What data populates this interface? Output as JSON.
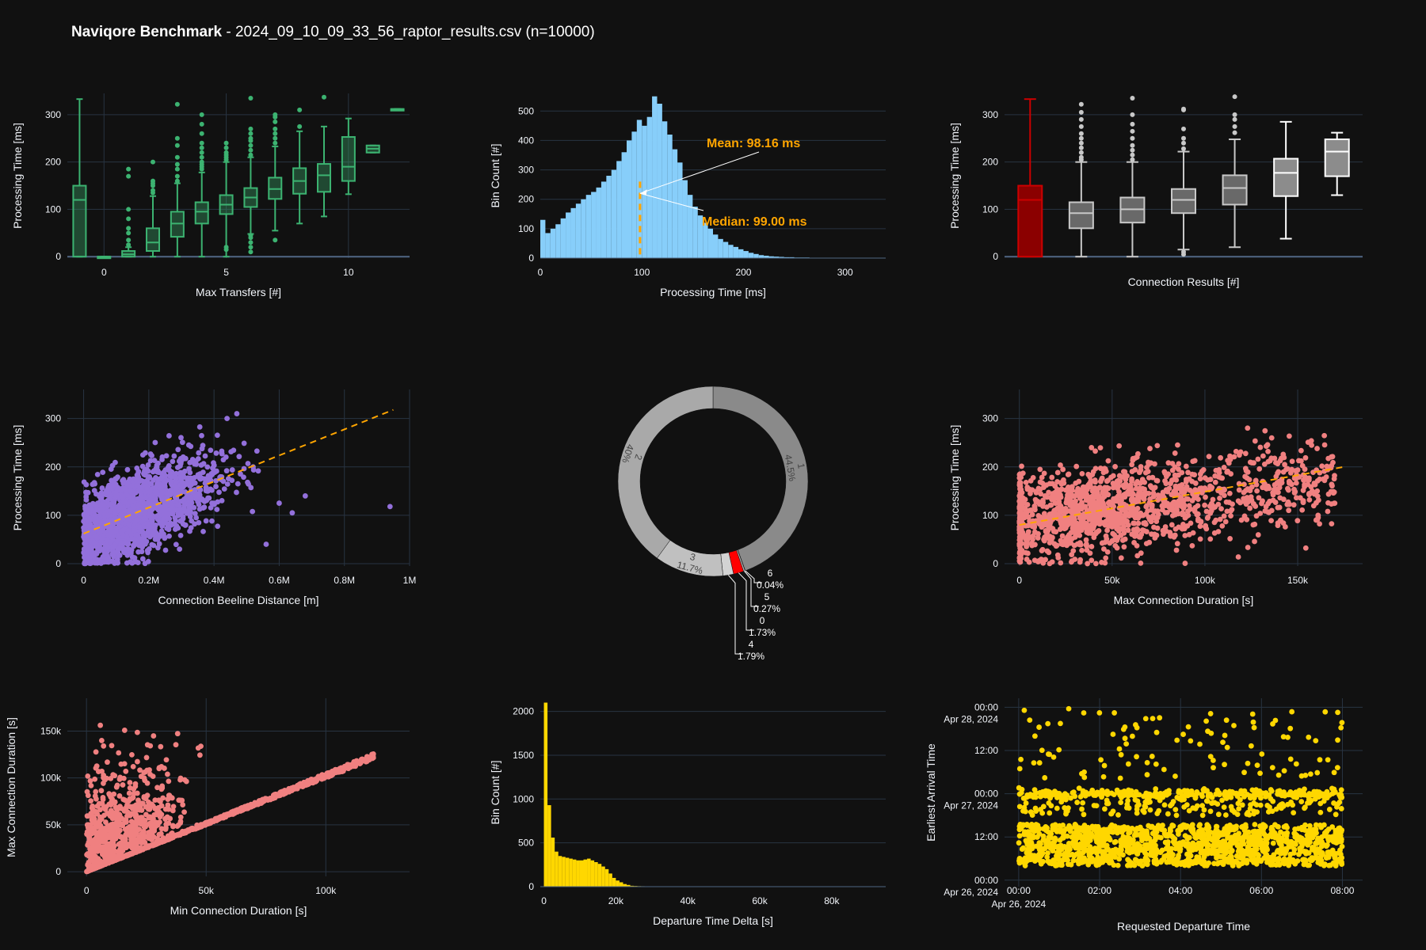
{
  "page": {
    "title_bold": "Naviqore Benchmark",
    "title_rest": " - 2024_09_10_09_33_56_raptor_results.csv (n=10000)"
  },
  "colors": {
    "background": "#111111",
    "grid": "#283442",
    "axis_line": "#506784",
    "green": "#3cb371",
    "lightblue": "#87cefa",
    "orange": "#ffa500",
    "purple": "#9370db",
    "salmon": "#f08080",
    "gold": "#ffd700",
    "red": "#8b0000",
    "gray_box": "#696969"
  },
  "chart_data": [
    {
      "id": "max_transfers_box",
      "type": "box",
      "xlabel": "Max Transfers [#]",
      "ylabel": "Processing Time [ms]",
      "xlim": [
        -1.5,
        12.5
      ],
      "ylim": [
        -3,
        345
      ],
      "x_ticks": [
        0,
        5,
        10
      ],
      "y_ticks": [
        0,
        100,
        200,
        300
      ],
      "boxes": [
        {
          "x": -1,
          "q1": 0,
          "median": 120,
          "q3": 150,
          "lo": 0,
          "hi": 333,
          "out": []
        },
        {
          "x": 0,
          "q1": 0,
          "median": 0,
          "q3": 0,
          "lo": 0,
          "hi": 0,
          "out": []
        },
        {
          "x": 1,
          "q1": 0,
          "median": 5,
          "q3": 12,
          "lo": 0,
          "hi": 20,
          "out": [
            25,
            35,
            50,
            60,
            80,
            100,
            170,
            185
          ]
        },
        {
          "x": 2,
          "q1": 12,
          "median": 30,
          "q3": 60,
          "lo": 0,
          "hi": 128,
          "out": [
            135,
            140,
            150,
            155,
            160,
            200
          ]
        },
        {
          "x": 3,
          "q1": 42,
          "median": 70,
          "q3": 95,
          "lo": 0,
          "hi": 155,
          "out": [
            160,
            170,
            185,
            195,
            210,
            235,
            250,
            322
          ]
        },
        {
          "x": 4,
          "q1": 70,
          "median": 95,
          "q3": 115,
          "lo": 0,
          "hi": 178,
          "out": [
            185,
            190,
            195,
            200,
            210,
            220,
            230,
            240,
            260,
            280,
            300
          ]
        },
        {
          "x": 5,
          "q1": 90,
          "median": 110,
          "q3": 130,
          "lo": 0,
          "hi": 200,
          "out": [
            205,
            210,
            215,
            220,
            230,
            240,
            20,
            15
          ]
        },
        {
          "x": 6,
          "q1": 105,
          "median": 125,
          "q3": 145,
          "lo": 48,
          "hi": 210,
          "out": [
            215,
            225,
            235,
            245,
            250,
            260,
            270,
            335,
            45,
            40,
            30,
            20,
            10
          ]
        },
        {
          "x": 7,
          "q1": 122,
          "median": 143,
          "q3": 167,
          "lo": 55,
          "hi": 233,
          "out": [
            240,
            250,
            260,
            270,
            285,
            295,
            300,
            35
          ]
        },
        {
          "x": 8,
          "q1": 133,
          "median": 160,
          "q3": 187,
          "lo": 70,
          "hi": 265,
          "out": [
            275,
            310
          ]
        },
        {
          "x": 9,
          "q1": 137,
          "median": 172,
          "q3": 196,
          "lo": 85,
          "hi": 275,
          "out": [
            337
          ]
        },
        {
          "x": 10,
          "q1": 160,
          "median": 190,
          "q3": 253,
          "lo": 132,
          "hi": 292,
          "out": []
        },
        {
          "x": 11,
          "q1": 220,
          "median": 228,
          "q3": 235,
          "lo": 220,
          "hi": 235,
          "out": []
        },
        {
          "x": 12,
          "q1": 312,
          "median": 312,
          "q3": 312,
          "lo": 312,
          "hi": 312,
          "out": []
        }
      ]
    },
    {
      "id": "processing_time_hist",
      "type": "histogram",
      "xlabel": "Processing Time [ms]",
      "ylabel": "Bin Count [#]",
      "xlim": [
        0,
        340
      ],
      "ylim": [
        0,
        560
      ],
      "x_ticks": [
        0,
        100,
        200,
        300
      ],
      "y_ticks": [
        0,
        100,
        200,
        300,
        400,
        500
      ],
      "bin_width": 5,
      "counts": [
        130,
        85,
        100,
        115,
        135,
        155,
        170,
        185,
        200,
        215,
        225,
        240,
        260,
        280,
        300,
        330,
        360,
        400,
        430,
        470,
        450,
        480,
        550,
        525,
        465,
        420,
        370,
        325,
        265,
        215,
        175,
        145,
        120,
        100,
        80,
        65,
        55,
        45,
        38,
        30,
        24,
        18,
        14,
        10,
        8,
        6,
        5,
        4,
        3,
        3,
        2,
        2,
        2,
        1,
        1,
        1,
        1,
        1,
        1,
        1,
        1,
        1,
        0,
        0,
        0,
        0,
        0,
        0
      ],
      "mean_line": 98.16,
      "annotations": [
        {
          "text": "Mean: 98.16 ms",
          "ax": 160,
          "ay": 375
        },
        {
          "text": "Median: 99.00 ms",
          "ax": 158,
          "ay": 118
        }
      ]
    },
    {
      "id": "connection_results_box",
      "type": "box",
      "xlabel": "Connection Results [#]",
      "ylabel": "Processing Time [ms]",
      "xlim": [
        -0.5,
        6.5
      ],
      "ylim": [
        -3,
        345
      ],
      "y_ticks": [
        0,
        100,
        200,
        300
      ],
      "boxes": [
        {
          "x": 0,
          "q1": 0,
          "median": 120,
          "q3": 150,
          "lo": 0,
          "hi": 333,
          "out": [],
          "color": "red"
        },
        {
          "x": 1,
          "q1": 60,
          "median": 92,
          "q3": 115,
          "lo": 0,
          "hi": 200,
          "out": [
            205,
            210,
            220,
            230,
            240,
            250,
            260,
            275,
            290,
            305,
            322
          ]
        },
        {
          "x": 2,
          "q1": 72,
          "median": 100,
          "q3": 125,
          "lo": 0,
          "hi": 200,
          "out": [
            205,
            215,
            225,
            235,
            250,
            265,
            280,
            300,
            335
          ]
        },
        {
          "x": 3,
          "q1": 92,
          "median": 120,
          "q3": 143,
          "lo": 15,
          "hi": 222,
          "out": [
            228,
            240,
            250,
            270,
            310,
            312,
            5,
            10
          ]
        },
        {
          "x": 4,
          "q1": 110,
          "median": 145,
          "q3": 172,
          "lo": 20,
          "hi": 248,
          "out": [
            262,
            275,
            290,
            300,
            338
          ]
        },
        {
          "x": 5,
          "q1": 128,
          "median": 177,
          "q3": 207,
          "lo": 38,
          "hi": 285,
          "out": []
        },
        {
          "x": 6,
          "q1": 170,
          "median": 222,
          "q3": 248,
          "lo": 130,
          "hi": 262,
          "out": []
        }
      ]
    },
    {
      "id": "distance_scatter",
      "type": "scatter",
      "xlabel": "Connection Beeline Distance [m]",
      "ylabel": "Processing Time [ms]",
      "xlim": [
        -50000,
        1000000
      ],
      "ylim": [
        -5,
        360
      ],
      "x_ticks": [
        0,
        200000,
        400000,
        600000,
        800000,
        1000000
      ],
      "x_tick_labels": [
        "0",
        "0.2M",
        "0.4M",
        "0.6M",
        "0.8M",
        "1M"
      ],
      "y_ticks": [
        0,
        100,
        200,
        300
      ],
      "trendline": [
        [
          0,
          62
        ],
        [
          950000,
          318
        ]
      ]
    },
    {
      "id": "connection_results_donut",
      "type": "pie",
      "slices": [
        {
          "label": "1",
          "percent": "44.5%",
          "value": 44.5,
          "color": "#8a8a8a"
        },
        {
          "label": "6",
          "percent": "0.04%",
          "value": 0.04,
          "color": "#dcdcdc"
        },
        {
          "label": "5",
          "percent": "0.27%",
          "value": 0.27,
          "color": "#b0b0b0"
        },
        {
          "label": "0",
          "percent": "1.73%",
          "value": 1.73,
          "color": "#ff0000"
        },
        {
          "label": "4",
          "percent": "1.79%",
          "value": 1.79,
          "color": "#d3d3d3"
        },
        {
          "label": "3",
          "percent": "11.7%",
          "value": 11.7,
          "color": "#c0c0c0"
        },
        {
          "label": "2",
          "percent": "40%",
          "value": 40,
          "color": "#a9a9a9"
        }
      ]
    },
    {
      "id": "max_duration_scatter",
      "type": "scatter",
      "xlabel": "Max Connection Duration [s]",
      "ylabel": "Processing Time [ms]",
      "xlim": [
        -8000,
        185000
      ],
      "ylim": [
        -5,
        360
      ],
      "x_ticks": [
        0,
        50000,
        100000,
        150000
      ],
      "x_tick_labels": [
        "0",
        "50k",
        "100k",
        "150k"
      ],
      "y_ticks": [
        0,
        100,
        200,
        300
      ],
      "trendline": [
        [
          0,
          80
        ],
        [
          175000,
          200
        ]
      ]
    },
    {
      "id": "min_max_duration_scatter",
      "type": "scatter",
      "xlabel": "Min Connection Duration [s]",
      "ylabel": "Max Connection Duration [s]",
      "xlim": [
        -8000,
        135000
      ],
      "ylim": [
        -5000,
        185000
      ],
      "x_ticks": [
        0,
        50000,
        100000
      ],
      "x_tick_labels": [
        "0",
        "50k",
        "100k"
      ],
      "y_ticks": [
        0,
        50000,
        100000,
        150000
      ],
      "y_tick_labels": [
        "0",
        "50k",
        "100k",
        "150k"
      ]
    },
    {
      "id": "departure_delta_hist",
      "type": "histogram",
      "xlabel": "Departure Time Delta [s]",
      "ylabel": "Bin Count [#]",
      "xlim": [
        -1000,
        95000
      ],
      "ylim": [
        0,
        2150
      ],
      "x_ticks": [
        0,
        20000,
        40000,
        60000,
        80000
      ],
      "x_tick_labels": [
        "0",
        "20k",
        "40k",
        "60k",
        "80k"
      ],
      "y_ticks": [
        0,
        500,
        1000,
        1500,
        2000
      ],
      "bin_width": 1000,
      "counts": [
        2100,
        930,
        560,
        400,
        350,
        340,
        330,
        320,
        310,
        300,
        300,
        310,
        320,
        300,
        280,
        260,
        230,
        200,
        150,
        100,
        70,
        50,
        30,
        20,
        10,
        8,
        6,
        5,
        4,
        3
      ]
    },
    {
      "id": "departure_arrival_scatter",
      "type": "scatter",
      "xlabel": "Requested Departure Time",
      "ylabel": "Earliest Arrival Time",
      "x_range_hours": [
        -0.35,
        8.5
      ],
      "y_range_hours": [
        -1.8,
        50.5
      ],
      "x_ticks": [
        {
          "label": "00:00",
          "sub": "Apr 26, 2024",
          "hour": 0
        },
        {
          "label": "02:00",
          "sub": "",
          "hour": 2
        },
        {
          "label": "04:00",
          "sub": "",
          "hour": 4
        },
        {
          "label": "06:00",
          "sub": "",
          "hour": 6
        },
        {
          "label": "08:00",
          "sub": "",
          "hour": 8
        }
      ],
      "y_ticks": [
        {
          "label": "00:00",
          "sub": "Apr 26, 2024",
          "hour": 0
        },
        {
          "label": "12:00",
          "sub": "",
          "hour": 12
        },
        {
          "label": "00:00",
          "sub": "Apr 27, 2024",
          "hour": 24
        },
        {
          "label": "12:00",
          "sub": "",
          "hour": 36
        },
        {
          "label": "00:00",
          "sub": "Apr 28, 2024",
          "hour": 48
        }
      ]
    }
  ]
}
